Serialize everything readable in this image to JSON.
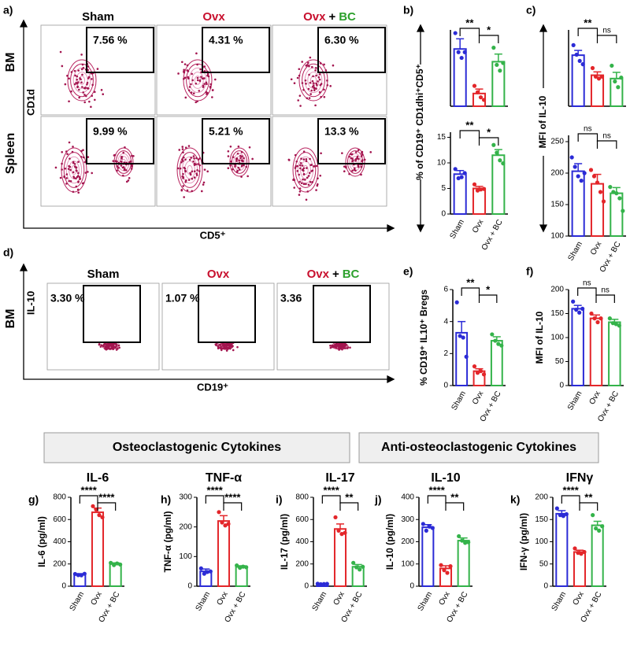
{
  "panel_labels": {
    "a": "a)",
    "b": "b)",
    "c": "c)",
    "d": "d)",
    "e": "e)",
    "f": "f)",
    "g": "g)",
    "h": "h)",
    "i": "i)",
    "j": "j)",
    "k": "k)"
  },
  "shared_ylabels": {
    "b": "% of CD19⁺ CD1dhi⁺CD5⁺",
    "c": "MFI of IL-10"
  },
  "section_headers": [
    "Osteoclastogenic Cytokines",
    "Anti-osteoclastogenic Cytokines"
  ],
  "flow": {
    "a": {
      "columns": [
        {
          "parts": [
            "Sham"
          ],
          "colors": [
            "#000000"
          ]
        },
        {
          "parts": [
            "Ovx"
          ],
          "colors": [
            "#c8102e"
          ]
        },
        {
          "parts": [
            "Ovx",
            "+",
            "BC"
          ],
          "colors": [
            "#c8102e",
            "#000000",
            "#2ca02c"
          ]
        }
      ],
      "rows": [
        "BM",
        "Spleen"
      ],
      "ylabel": "CD1d",
      "xlabel": "CD5⁺",
      "gates": [
        [
          "7.56 %",
          "4.31 %",
          "6.30 %"
        ],
        [
          "9.99 %",
          "5.21 %",
          "13.3 %"
        ]
      ]
    },
    "d": {
      "columns": [
        {
          "parts": [
            "Sham"
          ],
          "colors": [
            "#000000"
          ]
        },
        {
          "parts": [
            "Ovx"
          ],
          "colors": [
            "#c8102e"
          ]
        },
        {
          "parts": [
            "Ovx",
            "+",
            "BC"
          ],
          "colors": [
            "#c8102e",
            "#000000",
            "#2ca02c"
          ]
        }
      ],
      "rows": [
        "BM"
      ],
      "ylabel": "IL-10",
      "xlabel": "CD19⁺",
      "gates": [
        [
          "3.30 %",
          "1.07 %",
          "3.36"
        ]
      ]
    }
  },
  "chart_data": [
    {
      "type": "bar",
      "colors": [
        "#2b2bd6",
        "#e3262a",
        "#34b34a"
      ],
      "values": [
        9,
        2,
        7
      ],
      "errors": [
        1.6,
        0.7,
        1.2
      ],
      "points": [
        [
          11.5,
          8.5,
          7.6,
          8.5
        ],
        [
          3.2,
          2.2,
          1.4,
          1.0
        ],
        [
          9.2,
          6.5,
          5.6,
          6.8
        ]
      ],
      "ylim": [
        0,
        12
      ],
      "brackets": [
        {
          "pair": [
            0,
            1
          ],
          "label": "**"
        },
        {
          "pair": [
            1,
            2
          ],
          "label": "*"
        }
      ]
    },
    {
      "type": "bar",
      "categories": [
        "Sham",
        "Ovx",
        "Ovx + BC"
      ],
      "colors": [
        "#2b2bd6",
        "#e3262a",
        "#34b34a"
      ],
      "values": [
        7.8,
        5,
        11.5
      ],
      "errors": [
        0.7,
        0.4,
        1.1
      ],
      "points": [
        [
          8.8,
          7.0,
          7.2,
          8.0
        ],
        [
          5.8,
          4.6,
          4.8,
          4.9
        ],
        [
          13.5,
          12.0,
          10.5,
          9.9
        ]
      ],
      "ylim": [
        0,
        16
      ],
      "yticks": [
        0,
        5,
        10,
        15
      ],
      "brackets": [
        {
          "pair": [
            0,
            1
          ],
          "label": "**"
        },
        {
          "pair": [
            1,
            2
          ],
          "label": "*"
        }
      ]
    },
    {
      "type": "bar",
      "colors": [
        "#2b2bd6",
        "#e3262a",
        "#34b34a"
      ],
      "values": [
        207,
        165,
        158
      ],
      "errors": [
        10,
        7,
        13
      ],
      "points": [
        [
          228,
          208,
          195,
          188
        ],
        [
          180,
          162,
          158,
          162
        ],
        [
          185,
          152,
          140,
          160
        ]
      ],
      "ylim": [
        100,
        260
      ],
      "brackets": [
        {
          "pair": [
            0,
            1
          ],
          "label": "**"
        },
        {
          "pair": [
            1,
            2
          ],
          "label": "ns"
        }
      ]
    },
    {
      "type": "bar",
      "categories": [
        "Sham",
        "Ovx",
        "Ovx + BC"
      ],
      "colors": [
        "#2b2bd6",
        "#e3262a",
        "#34b34a"
      ],
      "values": [
        203,
        183,
        168
      ],
      "errors": [
        12,
        15,
        9
      ],
      "points": [
        [
          225,
          210,
          195,
          188,
          200
        ],
        [
          205,
          195,
          185,
          170,
          155
        ],
        [
          178,
          170,
          168,
          160,
          140
        ]
      ],
      "ylim": [
        100,
        260
      ],
      "yticks": [
        100,
        150,
        200,
        250
      ],
      "brackets": [
        {
          "pair": [
            0,
            1
          ],
          "label": "ns"
        },
        {
          "pair": [
            1,
            2
          ],
          "label": "ns"
        }
      ]
    },
    {
      "type": "bar",
      "ylabel": "% CD19⁺ IL10⁺ Bregs",
      "categories": [
        "Sham",
        "Ovx",
        "Ovx + BC"
      ],
      "colors": [
        "#2b2bd6",
        "#e3262a",
        "#34b34a"
      ],
      "values": [
        3.3,
        0.9,
        2.8
      ],
      "errors": [
        0.7,
        0.15,
        0.25
      ],
      "points": [
        [
          5.2,
          3.1,
          3.0,
          1.8
        ],
        [
          1.2,
          0.8,
          0.9,
          0.7
        ],
        [
          3.2,
          2.8,
          2.6,
          2.5
        ]
      ],
      "ylim": [
        0,
        6
      ],
      "yticks": [
        0,
        2,
        4,
        6
      ],
      "brackets": [
        {
          "pair": [
            0,
            1
          ],
          "label": "**"
        },
        {
          "pair": [
            1,
            2
          ],
          "label": "*"
        }
      ]
    },
    {
      "type": "bar",
      "ylabel": "MFI of IL-10",
      "categories": [
        "Sham",
        "Ovx",
        "Ovx + BC"
      ],
      "colors": [
        "#2b2bd6",
        "#e3262a",
        "#34b34a"
      ],
      "values": [
        160,
        140,
        132
      ],
      "errors": [
        7,
        7,
        6
      ],
      "points": [
        [
          175,
          158,
          152,
          160
        ],
        [
          150,
          140,
          132,
          140
        ],
        [
          140,
          130,
          128,
          125
        ]
      ],
      "ylim": [
        0,
        200
      ],
      "yticks": [
        0,
        50,
        100,
        150,
        200
      ],
      "brackets": [
        {
          "pair": [
            0,
            1
          ],
          "label": "ns"
        },
        {
          "pair": [
            1,
            2
          ],
          "label": "ns"
        }
      ]
    },
    {
      "type": "bar",
      "title": "IL-6",
      "ylabel": "IL-6 (pg/ml)",
      "categories": [
        "Sham",
        "Ovx",
        "Ovx + BC"
      ],
      "colors": [
        "#2b2bd6",
        "#e3262a",
        "#34b34a"
      ],
      "values": [
        105,
        665,
        200
      ],
      "errors": [
        8,
        38,
        10
      ],
      "points": [
        [
          110,
          100,
          98,
          112
        ],
        [
          720,
          690,
          640,
          620
        ],
        [
          210,
          190,
          205,
          195
        ]
      ],
      "ylim": [
        0,
        800
      ],
      "yticks": [
        0,
        200,
        400,
        600,
        800
      ],
      "brackets": [
        {
          "pair": [
            0,
            1
          ],
          "label": "****"
        },
        {
          "pair": [
            1,
            2
          ],
          "label": "****"
        }
      ]
    },
    {
      "type": "bar",
      "title": "TNF-α",
      "ylabel": "TNF-α (pg/ml)",
      "categories": [
        "Sham",
        "Ovx",
        "Ovx + BC"
      ],
      "colors": [
        "#2b2bd6",
        "#e3262a",
        "#34b34a"
      ],
      "values": [
        50,
        220,
        65
      ],
      "errors": [
        8,
        18,
        4
      ],
      "points": [
        [
          60,
          42,
          48,
          50
        ],
        [
          250,
          215,
          205,
          210
        ],
        [
          70,
          62,
          66,
          64
        ]
      ],
      "ylim": [
        0,
        300
      ],
      "yticks": [
        0,
        100,
        200,
        300
      ],
      "brackets": [
        {
          "pair": [
            0,
            1
          ],
          "label": "****"
        },
        {
          "pair": [
            1,
            2
          ],
          "label": "****"
        }
      ]
    },
    {
      "type": "bar",
      "title": "IL-17",
      "ylabel": "IL-17 (pg/ml)",
      "categories": [
        "Sham",
        "Ovx",
        "Ovx + BC"
      ],
      "colors": [
        "#2b2bd6",
        "#e3262a",
        "#34b34a"
      ],
      "values": [
        20,
        515,
        175
      ],
      "errors": [
        3,
        45,
        20
      ],
      "points": [
        [
          22,
          18,
          20,
          21
        ],
        [
          620,
          500,
          470,
          480
        ],
        [
          210,
          170,
          150,
          175
        ]
      ],
      "ylim": [
        0,
        800
      ],
      "yticks": [
        0,
        200,
        400,
        600,
        800
      ],
      "brackets": [
        {
          "pair": [
            0,
            1
          ],
          "label": "****"
        },
        {
          "pair": [
            1,
            2
          ],
          "label": "**"
        }
      ]
    },
    {
      "type": "bar",
      "title": "IL-10",
      "ylabel": "IL-10 (pg/ml)",
      "categories": [
        "Sham",
        "Ovx",
        "Ovx + BC"
      ],
      "colors": [
        "#2b2bd6",
        "#e3262a",
        "#34b34a"
      ],
      "values": [
        265,
        80,
        205
      ],
      "errors": [
        12,
        12,
        12
      ],
      "points": [
        [
          280,
          250,
          268,
          262
        ],
        [
          95,
          72,
          60,
          90
        ],
        [
          225,
          205,
          195,
          198
        ]
      ],
      "ylim": [
        0,
        400
      ],
      "yticks": [
        0,
        100,
        200,
        300,
        400
      ],
      "brackets": [
        {
          "pair": [
            0,
            1
          ],
          "label": "****"
        },
        {
          "pair": [
            1,
            2
          ],
          "label": "**"
        }
      ]
    },
    {
      "type": "bar",
      "title": "IFNγ",
      "ylabel": "IFN-γ (pg/ml)",
      "categories": [
        "Sham",
        "Ovx",
        "Ovx + BC"
      ],
      "colors": [
        "#2b2bd6",
        "#e3262a",
        "#34b34a"
      ],
      "values": [
        163,
        77,
        137
      ],
      "errors": [
        7,
        4,
        9
      ],
      "points": [
        [
          175,
          160,
          158,
          162
        ],
        [
          85,
          75,
          73,
          77
        ],
        [
          160,
          130,
          125,
          135
        ]
      ],
      "ylim": [
        0,
        200
      ],
      "yticks": [
        0,
        50,
        100,
        150,
        200
      ],
      "brackets": [
        {
          "pair": [
            0,
            1
          ],
          "label": "****"
        },
        {
          "pair": [
            1,
            2
          ],
          "label": "**"
        }
      ]
    }
  ]
}
